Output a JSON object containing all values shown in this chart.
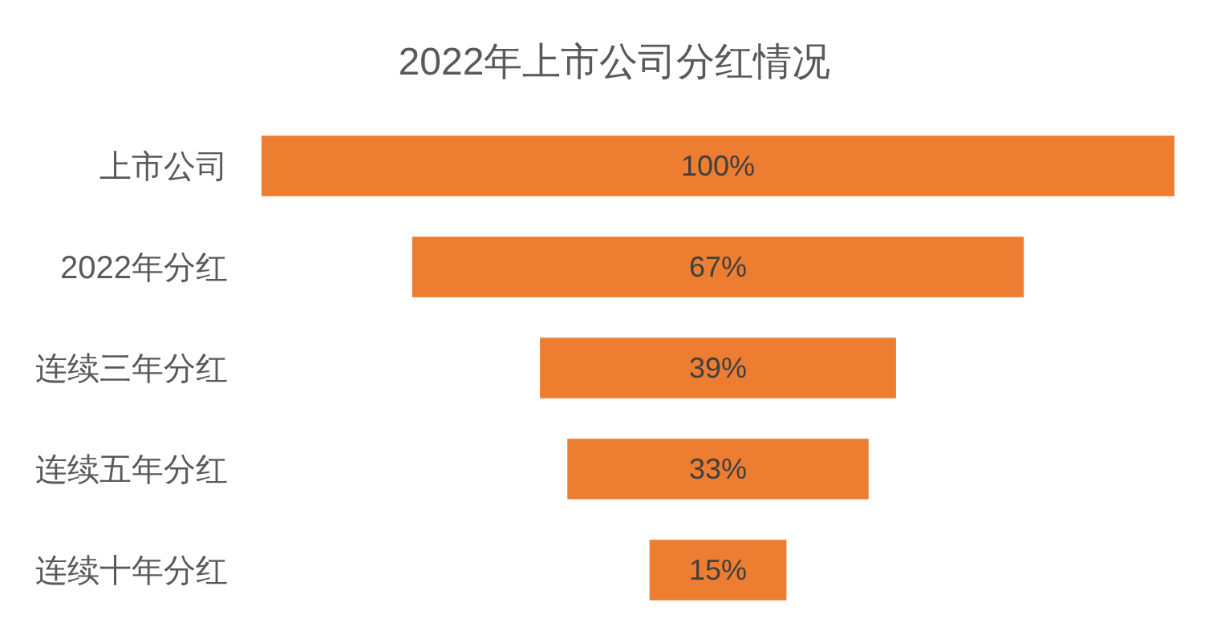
{
  "chart_data": {
    "type": "other",
    "title": "2022年上市公司分红情况",
    "categories": [
      "上市公司",
      "2022年分红",
      "连续三年分红",
      "连续五年分红",
      "连续十年分红"
    ],
    "values": [
      100,
      67,
      39,
      33,
      15
    ],
    "value_labels": [
      "100%",
      "67%",
      "39%",
      "33%",
      "15%"
    ],
    "color": "#ed7d31"
  }
}
